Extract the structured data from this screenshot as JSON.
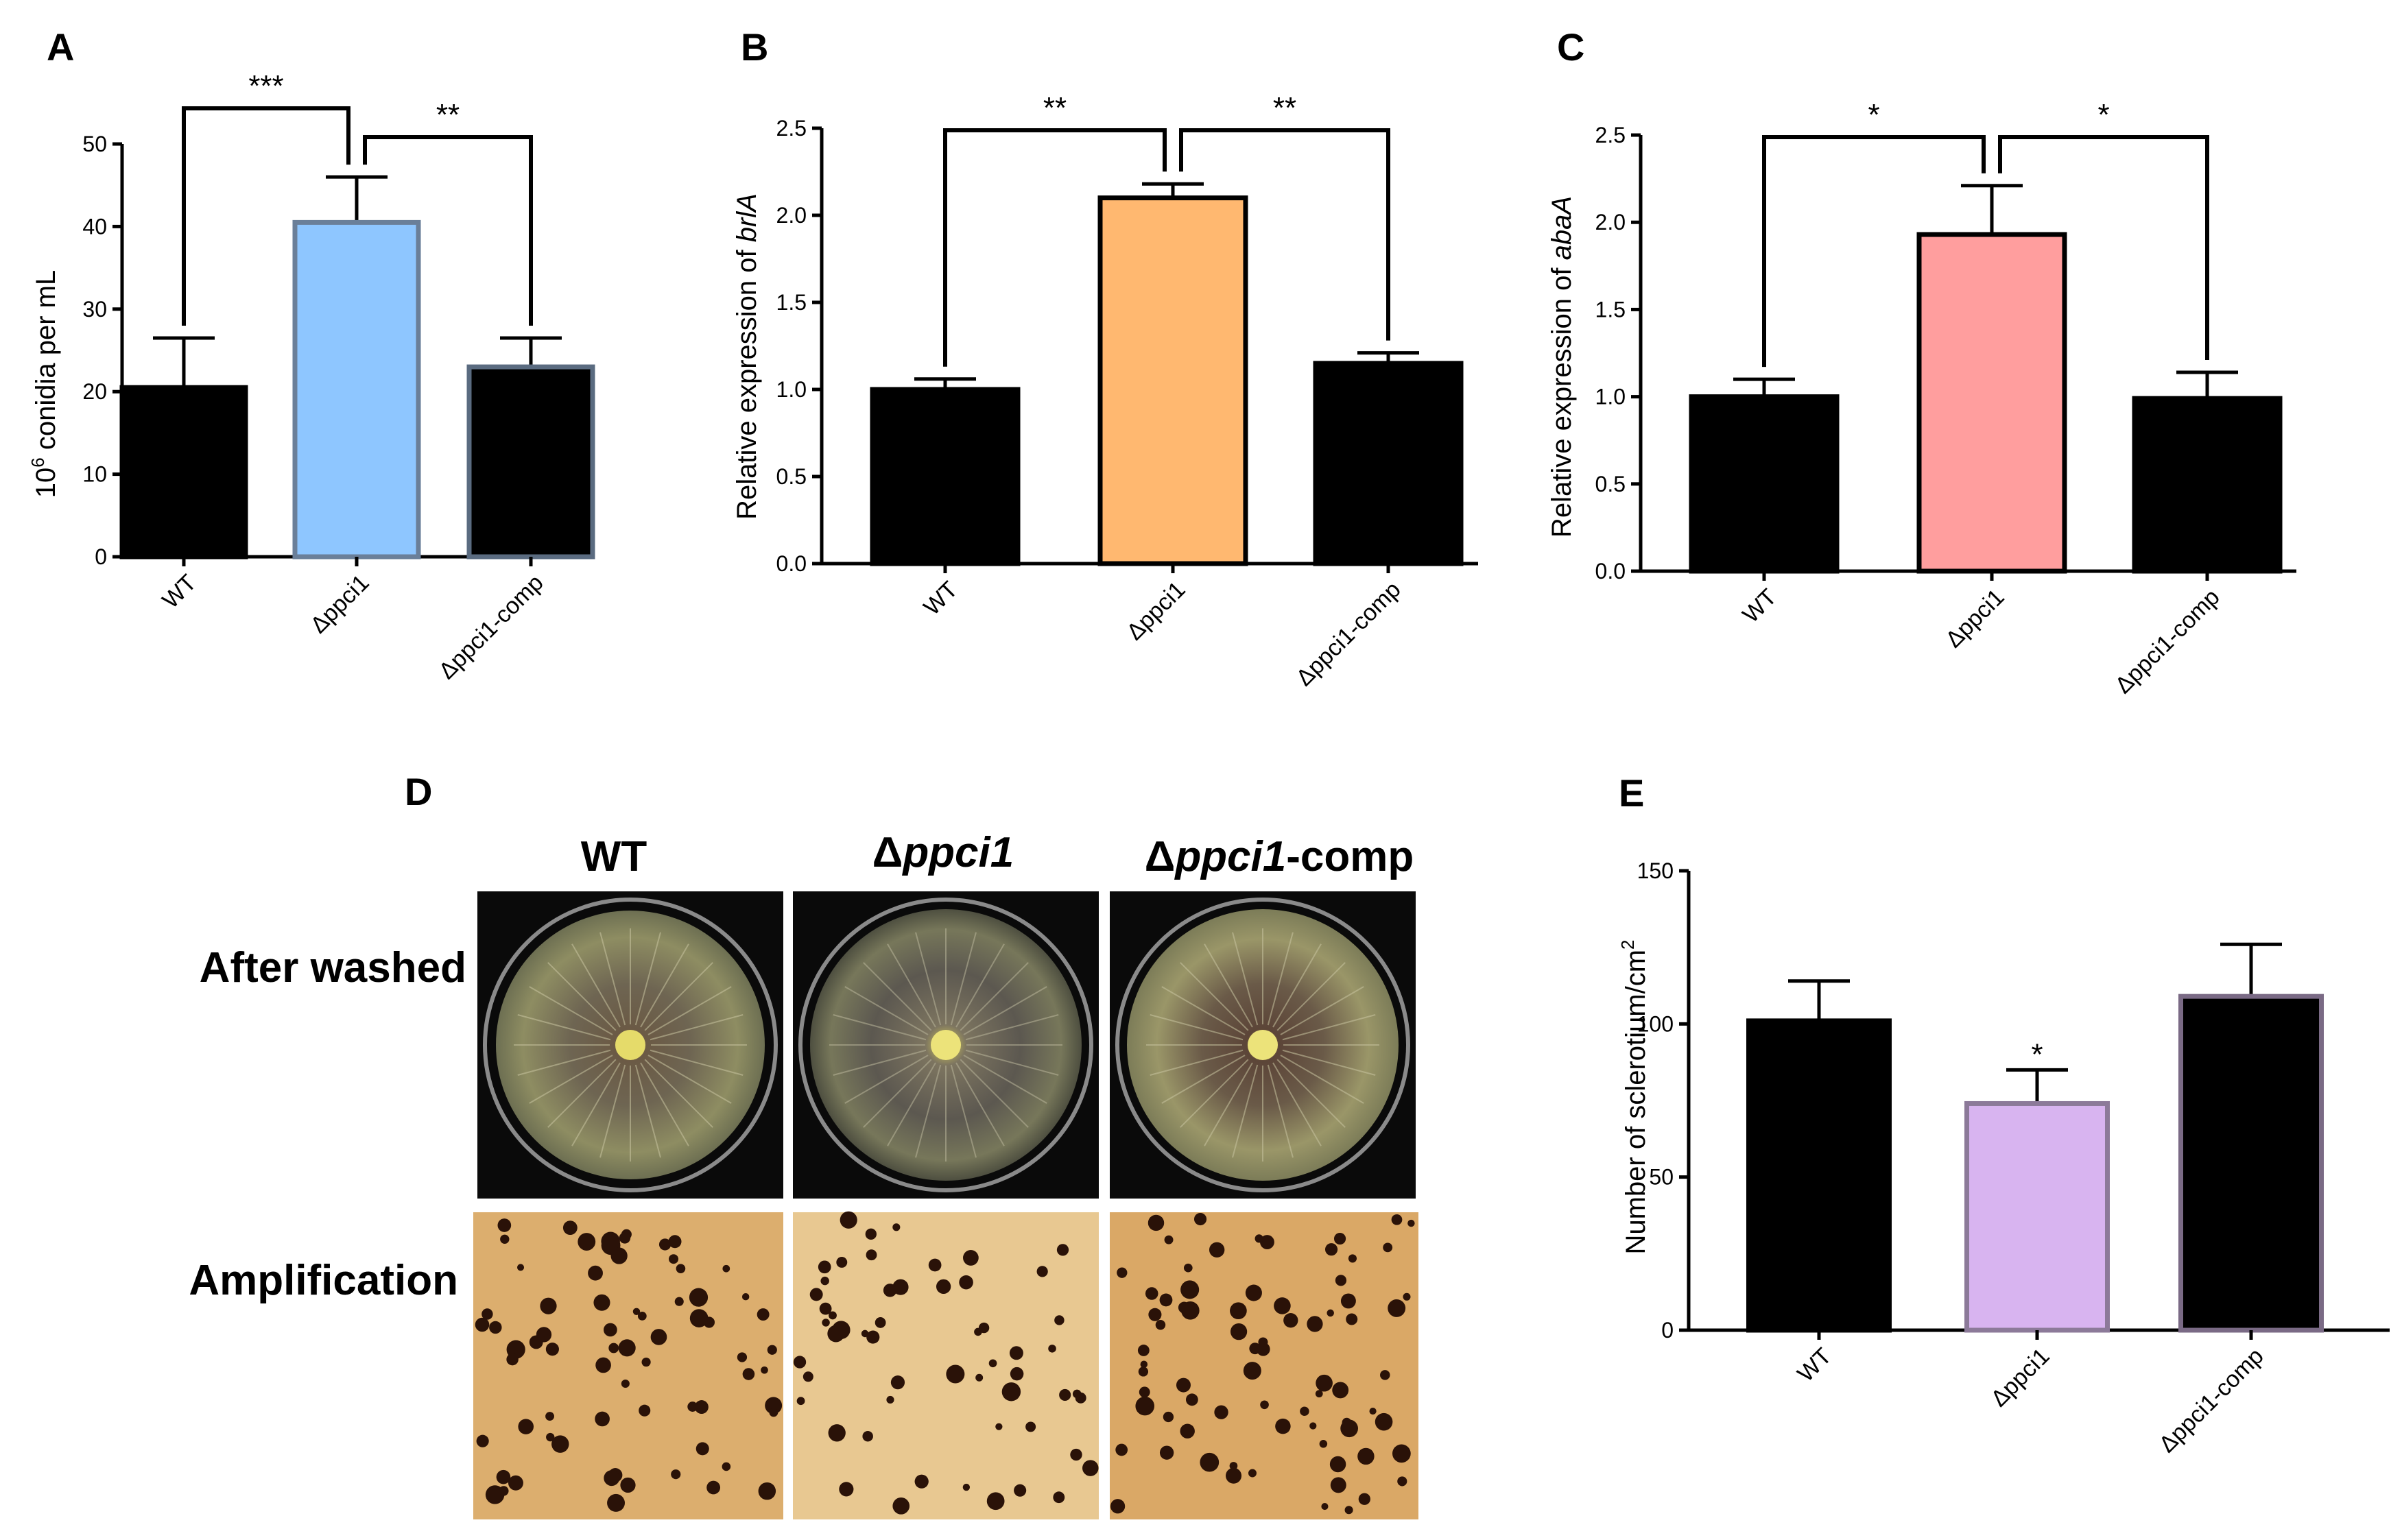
{
  "chart_data": [
    {
      "panel": "A",
      "type": "bar",
      "categories": [
        "WT",
        "Δppci1",
        "Δppci1-comp"
      ],
      "values": [
        20.5,
        40.5,
        23
      ],
      "errors": [
        6,
        5.5,
        3.5
      ],
      "colors": [
        "#000000",
        "#8ec6ff",
        "#000000"
      ],
      "edge_colors": [
        "#000000",
        "#6a7f99",
        "#5a6b80"
      ],
      "ylabel_sup": "6",
      "ylabel_base": "10",
      "ylabel_rest": " conidia per mL",
      "ylim": [
        0,
        50
      ],
      "yticks": [
        "0",
        "10",
        "20",
        "30",
        "40",
        "50"
      ],
      "comparisons": [
        {
          "from": 0,
          "to": 1,
          "label": "***"
        },
        {
          "from": 1,
          "to": 2,
          "label": "**"
        }
      ]
    },
    {
      "panel": "B",
      "type": "bar",
      "categories": [
        "WT",
        "Δppci1",
        "Δppci1-comp"
      ],
      "values": [
        1.0,
        2.1,
        1.15
      ],
      "errors": [
        0.06,
        0.08,
        0.06
      ],
      "colors": [
        "#000000",
        "#ffb870",
        "#000000"
      ],
      "edge_colors": [
        "#000000",
        "#000000",
        "#000000"
      ],
      "ylabel_plain": "Relative expression of ",
      "ylabel_italic": "brlA",
      "ylim": [
        0,
        2.5
      ],
      "yticks": [
        "0.0",
        "0.5",
        "1.0",
        "1.5",
        "2.0",
        "2.5"
      ],
      "comparisons": [
        {
          "from": 0,
          "to": 1,
          "label": "**"
        },
        {
          "from": 1,
          "to": 2,
          "label": "**"
        }
      ]
    },
    {
      "panel": "C",
      "type": "bar",
      "categories": [
        "WT",
        "Δppci1",
        "Δppci1-comp"
      ],
      "values": [
        1.0,
        1.93,
        0.99
      ],
      "errors": [
        0.1,
        0.28,
        0.15
      ],
      "colors": [
        "#000000",
        "#ff9e9e",
        "#000000"
      ],
      "edge_colors": [
        "#000000",
        "#000000",
        "#000000"
      ],
      "ylabel_plain": "Relative expression of ",
      "ylabel_italic": "abaA",
      "ylim": [
        0,
        2.5
      ],
      "yticks": [
        "0.0",
        "0.5",
        "1.0",
        "1.5",
        "2.0",
        "2.5"
      ],
      "comparisons": [
        {
          "from": 0,
          "to": 1,
          "label": "*"
        },
        {
          "from": 1,
          "to": 2,
          "label": "*"
        }
      ]
    },
    {
      "panel": "E",
      "type": "bar",
      "categories": [
        "WT",
        "Δppci1",
        "Δppci1-comp"
      ],
      "values": [
        101,
        74,
        109
      ],
      "errors": [
        13,
        11,
        17
      ],
      "colors": [
        "#000000",
        "#d8b4f0",
        "#000000"
      ],
      "edge_colors": [
        "#000000",
        "#8c7a99",
        "#7a6a85"
      ],
      "ylabel_base": "Number of sclerotium/cm",
      "ylabel_sup": "2",
      "ylim": [
        0,
        150
      ],
      "yticks": [
        "0",
        "50",
        "100",
        "150"
      ],
      "bar_star": "*"
    }
  ],
  "panel_d": {
    "letter": "D",
    "columns": [
      {
        "prefix": "",
        "italic": "",
        "plain": "WT"
      },
      {
        "prefix": "Δ",
        "italic": "ppci1",
        "plain": ""
      },
      {
        "prefix": "Δ",
        "italic": "ppci1",
        "plain": "-comp"
      }
    ],
    "rows": [
      "After washed",
      "Amplification"
    ]
  },
  "colors": {
    "plate_bg": "#0a0a0a",
    "plate_agar": "#7e7a55",
    "amp_bg": "#e2b979",
    "sclerotium": "#2a1208"
  }
}
